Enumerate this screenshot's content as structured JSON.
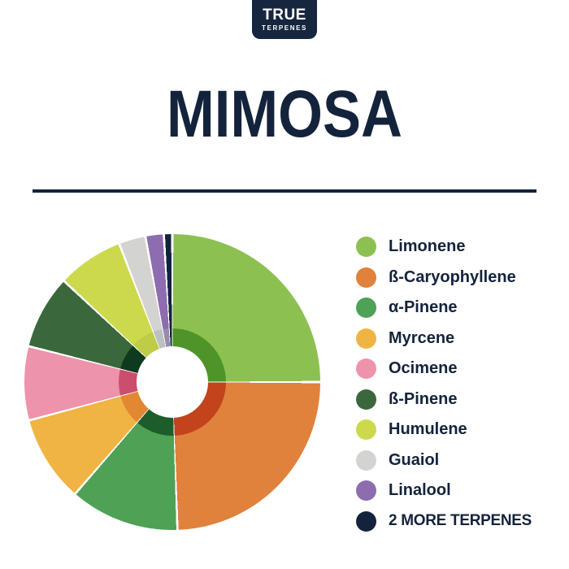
{
  "brand": {
    "logo_line1": "TRUE",
    "logo_line2": "TERPENES",
    "logo_bg": "#16263f",
    "logo_text_color": "#ffffff"
  },
  "title": "MIMOSA",
  "colors": {
    "background": "#ffffff",
    "navy": "#14233c",
    "divider": "#14233c"
  },
  "chart_data": {
    "type": "pie",
    "donut": true,
    "title": "MIMOSA",
    "legend_position": "right",
    "start_angle_deg": 0,
    "direction": "clockwise",
    "gap_deg": 0.45,
    "segments": [
      {
        "label": "Limonene",
        "percent": 25.0,
        "start_deg": 0,
        "end_deg": 90,
        "color": "#8cc152",
        "inner_color": "#4e9428"
      },
      {
        "label": "ß-Caryophyllene",
        "percent": 24.4,
        "start_deg": 90,
        "end_deg": 178,
        "color": "#e0813c",
        "inner_color": "#c2431c"
      },
      {
        "label": "α-Pinene",
        "percent": 11.9,
        "start_deg": 178,
        "end_deg": 221,
        "color": "#4ea155",
        "inner_color": "#1d5c2b"
      },
      {
        "label": "Myrcene",
        "percent": 9.4,
        "start_deg": 221,
        "end_deg": 255,
        "color": "#f0b445",
        "inner_color": "#e28732"
      },
      {
        "label": "Ocimene",
        "percent": 8.1,
        "start_deg": 255,
        "end_deg": 284,
        "color": "#ee93ac",
        "inner_color": "#cc4e6e"
      },
      {
        "label": "ß-Pinene",
        "percent": 8.1,
        "start_deg": 284,
        "end_deg": 313,
        "color": "#3a683c",
        "inner_color": "#0e3a20"
      },
      {
        "label": "Humulene",
        "percent": 7.2,
        "start_deg": 313,
        "end_deg": 339,
        "color": "#ccd94d",
        "inner_color": "#bfcc45"
      },
      {
        "label": "Guaiol",
        "percent": 2.9,
        "start_deg": 339,
        "end_deg": 349.5,
        "color": "#d3d3d2",
        "inner_color": "#bcc0c2"
      },
      {
        "label": "Linalool",
        "percent": 2.0,
        "start_deg": 349.5,
        "end_deg": 356.7,
        "color": "#8e6cb0",
        "inner_color": "#958ca8"
      },
      {
        "label": "2 MORE TERPENES",
        "percent": 0.9,
        "start_deg": 356.7,
        "end_deg": 360,
        "color": "#14233c",
        "inner_color": "#14233c"
      }
    ]
  }
}
